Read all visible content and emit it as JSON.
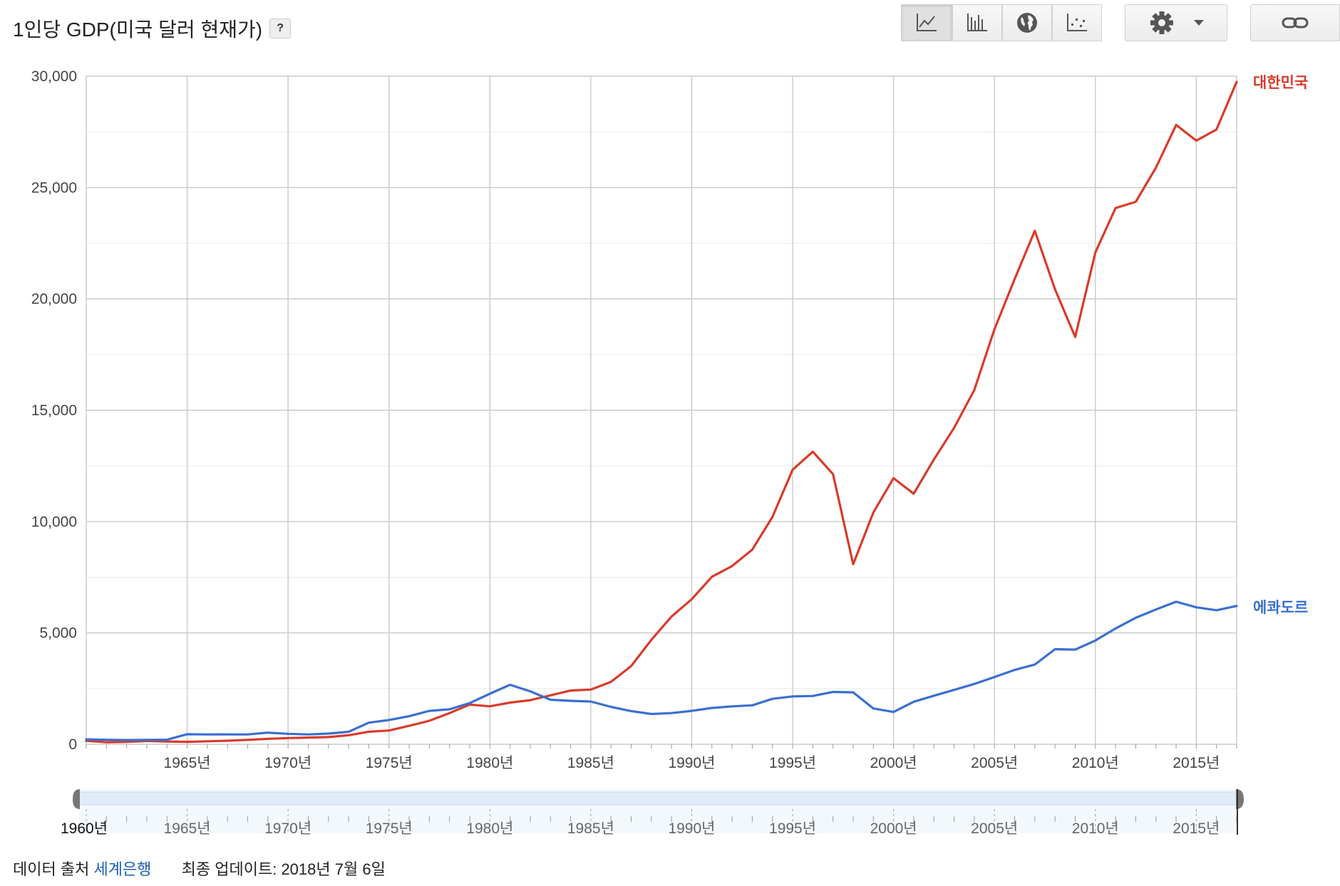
{
  "header": {
    "title": "1인당 GDP(미국 달러 현재가)",
    "help_label": "?"
  },
  "toolbar": {
    "buttons": [
      {
        "icon": "line-chart-icon",
        "active": true
      },
      {
        "icon": "bar-chart-icon",
        "active": false
      },
      {
        "icon": "globe-icon",
        "active": false
      },
      {
        "icon": "scatter-chart-icon",
        "active": false
      },
      {
        "icon": "gear-icon",
        "active": false
      },
      {
        "icon": "link-icon",
        "active": false
      }
    ]
  },
  "colors": {
    "korea": "#d83b2b",
    "ecuador": "#3a6fd0",
    "grid": "#cccccc",
    "axis_text": "#444444",
    "link": "#1a5fb4"
  },
  "chart_data": {
    "type": "line",
    "title": "1인당 GDP(미국 달러 현재가)",
    "ylim": [
      0,
      30000
    ],
    "xlim": [
      1960,
      2017
    ],
    "y_ticks": [
      0,
      5000,
      10000,
      15000,
      20000,
      25000,
      30000
    ],
    "y_tick_labels": [
      "0",
      "5,000",
      "10,000",
      "15,000",
      "20,000",
      "25,000",
      "30,000"
    ],
    "x_ticks": [
      1965,
      1970,
      1975,
      1980,
      1985,
      1990,
      1995,
      2000,
      2005,
      2010,
      2015
    ],
    "x_tick_labels": [
      "1965년",
      "1970년",
      "1975년",
      "1980년",
      "1985년",
      "1990년",
      "1995년",
      "2000년",
      "2005년",
      "2010년",
      "2015년"
    ],
    "x": [
      1960,
      1961,
      1962,
      1963,
      1964,
      1965,
      1966,
      1967,
      1968,
      1969,
      1970,
      1971,
      1972,
      1973,
      1974,
      1975,
      1976,
      1977,
      1978,
      1979,
      1980,
      1981,
      1982,
      1983,
      1984,
      1985,
      1986,
      1987,
      1988,
      1989,
      1990,
      1991,
      1992,
      1993,
      1994,
      1995,
      1996,
      1997,
      1998,
      1999,
      2000,
      2001,
      2002,
      2003,
      2004,
      2005,
      2006,
      2007,
      2008,
      2009,
      2010,
      2011,
      2012,
      2013,
      2014,
      2015,
      2016,
      2017
    ],
    "grid": true,
    "legend_position": "right",
    "series": [
      {
        "name": "대한민국",
        "color": "#d83b2b",
        "values": [
          158,
          93,
          106,
          146,
          124,
          109,
          133,
          161,
          199,
          244,
          279,
          301,
          323,
          406,
          563,
          616,
          829,
          1056,
          1400,
          1780,
          1704,
          1870,
          1981,
          2198,
          2413,
          2457,
          2803,
          3511,
          4687,
          5738,
          6516,
          7523,
          8002,
          8741,
          10206,
          12333,
          13137,
          12132,
          8085,
          10409,
          11948,
          11253,
          12789,
          14209,
          15908,
          18640,
          20888,
          23061,
          20431,
          18292,
          22087,
          24080,
          24359,
          25890,
          27811,
          27105,
          27609,
          29743
        ]
      },
      {
        "name": "에콰도르",
        "color": "#3a6fd0",
        "values": [
          220,
          200,
          190,
          195,
          205,
          450,
          440,
          445,
          440,
          520,
          470,
          440,
          480,
          560,
          970,
          1090,
          1260,
          1500,
          1570,
          1850,
          2270,
          2670,
          2380,
          2000,
          1950,
          1920,
          1680,
          1490,
          1360,
          1400,
          1500,
          1630,
          1700,
          1750,
          2040,
          2150,
          2170,
          2350,
          2330,
          1610,
          1450,
          1910,
          2180,
          2440,
          2710,
          3020,
          3340,
          3580,
          4270,
          4250,
          4660,
          5200,
          5680,
          6050,
          6400,
          6150,
          6020,
          6210
        ]
      }
    ]
  },
  "range_slider": {
    "start_label": "1960년",
    "tick_labels": [
      "1965년",
      "1970년",
      "1975년",
      "1980년",
      "1985년",
      "1990년",
      "1995년",
      "2000년",
      "2005년",
      "2010년",
      "2015년"
    ]
  },
  "footer": {
    "source_prefix": "데이터 출처",
    "source_link": "세계은행",
    "last_updated": "최종 업데이트: 2018년 7월 6일"
  }
}
